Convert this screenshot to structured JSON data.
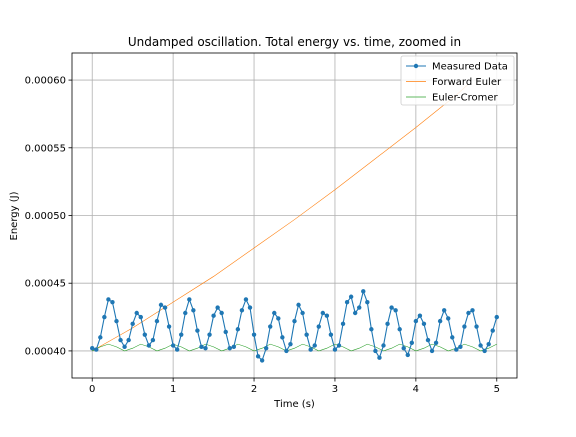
{
  "chart_data": {
    "type": "line",
    "title": "Undamped oscillation. Total energy vs. time, zoomed in",
    "xlabel": "Time (s)",
    "ylabel": "Energy (J)",
    "xlim": [
      -0.25,
      5.25
    ],
    "ylim": [
      0.00038,
      0.00062
    ],
    "x_ticks": [
      0,
      1,
      2,
      3,
      4,
      5
    ],
    "x_tick_labels": [
      "0",
      "1",
      "2",
      "3",
      "4",
      "5"
    ],
    "y_ticks": [
      0.0004,
      0.00045,
      0.0005,
      0.00055,
      0.0006
    ],
    "y_tick_labels": [
      "0.00040",
      "0.00045",
      "0.00050",
      "0.00055",
      "0.00060"
    ],
    "grid": true,
    "legend_position": "top-right",
    "colors": {
      "measured": "#1f77b4",
      "forward_euler": "#ff7f0e",
      "euler_cromer": "#2ca02c",
      "grid": "#b0b0b0"
    },
    "series": [
      {
        "name": "Measured Data",
        "style": "line-with-markers",
        "x": [
          0.0,
          0.05,
          0.1,
          0.15,
          0.2,
          0.25,
          0.3,
          0.35,
          0.4,
          0.45,
          0.5,
          0.55,
          0.6,
          0.65,
          0.7,
          0.75,
          0.8,
          0.85,
          0.9,
          0.95,
          1.0,
          1.05,
          1.1,
          1.15,
          1.2,
          1.25,
          1.3,
          1.35,
          1.4,
          1.45,
          1.5,
          1.55,
          1.6,
          1.65,
          1.7,
          1.75,
          1.8,
          1.85,
          1.9,
          1.95,
          2.0,
          2.05,
          2.1,
          2.15,
          2.2,
          2.25,
          2.3,
          2.35,
          2.4,
          2.45,
          2.5,
          2.55,
          2.6,
          2.65,
          2.7,
          2.75,
          2.8,
          2.85,
          2.9,
          2.95,
          3.0,
          3.05,
          3.1,
          3.15,
          3.2,
          3.25,
          3.3,
          3.35,
          3.4,
          3.45,
          3.5,
          3.55,
          3.6,
          3.65,
          3.7,
          3.75,
          3.8,
          3.85,
          3.9,
          3.95,
          4.0,
          4.05,
          4.1,
          4.15,
          4.2,
          4.25,
          4.3,
          4.35,
          4.4,
          4.45,
          4.5,
          4.55,
          4.6,
          4.65,
          4.7,
          4.75,
          4.8,
          4.85,
          4.9,
          4.95,
          5.0
        ],
        "y": [
          0.000402,
          0.000401,
          0.00041,
          0.000425,
          0.000438,
          0.000436,
          0.000422,
          0.000408,
          0.000403,
          0.000408,
          0.00042,
          0.000428,
          0.000425,
          0.000412,
          0.000404,
          0.000408,
          0.000422,
          0.000434,
          0.000432,
          0.000418,
          0.000404,
          0.000401,
          0.000412,
          0.000428,
          0.000438,
          0.00043,
          0.000415,
          0.000403,
          0.000402,
          0.000412,
          0.000426,
          0.000432,
          0.000428,
          0.000414,
          0.000402,
          0.000403,
          0.000416,
          0.00043,
          0.000438,
          0.000432,
          0.000412,
          0.000396,
          0.000393,
          0.000402,
          0.000418,
          0.000428,
          0.000424,
          0.00041,
          0.0004,
          0.000405,
          0.000422,
          0.000434,
          0.000428,
          0.000412,
          0.000401,
          0.000404,
          0.000418,
          0.000428,
          0.000426,
          0.000412,
          0.000401,
          0.000404,
          0.00042,
          0.000436,
          0.00044,
          0.000428,
          0.000432,
          0.000444,
          0.000436,
          0.000416,
          0.0004,
          0.000395,
          0.000404,
          0.00042,
          0.000432,
          0.00043,
          0.000416,
          0.000402,
          0.000397,
          0.000406,
          0.000422,
          0.000426,
          0.00042,
          0.000408,
          0.0004,
          0.000406,
          0.000422,
          0.00043,
          0.000424,
          0.00041,
          0.000401,
          0.000403,
          0.000418,
          0.000428,
          0.00043,
          0.000418,
          0.000404,
          0.0004,
          0.000405,
          0.000415,
          0.000425
        ]
      },
      {
        "name": "Forward Euler",
        "style": "line",
        "x": [
          0.0,
          0.5,
          1.0,
          1.5,
          2.0,
          2.5,
          3.0,
          3.5,
          4.0,
          4.5,
          4.65
        ],
        "y": [
          0.0004,
          0.000417,
          0.000436,
          0.000455,
          0.000476,
          0.000497,
          0.000519,
          0.000542,
          0.000565,
          0.000589,
          0.000597
        ]
      },
      {
        "name": "Euler-Cromer",
        "style": "line",
        "x": [
          0.0,
          0.1,
          0.2,
          0.3,
          0.4,
          0.5,
          0.6,
          0.7,
          0.8,
          0.9,
          1.0,
          1.1,
          1.2,
          1.3,
          1.4,
          1.5,
          1.6,
          1.7,
          1.8,
          1.9,
          2.0,
          2.1,
          2.2,
          2.3,
          2.4,
          2.5,
          2.6,
          2.7,
          2.8,
          2.9,
          3.0,
          3.1,
          3.2,
          3.3,
          3.4,
          3.5,
          3.6,
          3.7,
          3.8,
          3.9,
          4.0,
          4.1,
          4.2,
          4.3,
          4.4,
          4.5,
          4.6,
          4.7,
          4.8,
          4.9,
          5.0
        ],
        "y": [
          0.0004,
          0.000403,
          0.000405,
          0.000403,
          0.0004,
          0.000402,
          0.000405,
          0.000403,
          0.0004,
          0.000402,
          0.000405,
          0.000403,
          0.0004,
          0.000402,
          0.000405,
          0.000403,
          0.0004,
          0.000402,
          0.000405,
          0.000403,
          0.0004,
          0.000402,
          0.000405,
          0.000403,
          0.0004,
          0.000402,
          0.000405,
          0.000403,
          0.0004,
          0.000402,
          0.000405,
          0.000403,
          0.0004,
          0.000402,
          0.000405,
          0.000403,
          0.0004,
          0.000402,
          0.000405,
          0.000403,
          0.0004,
          0.000402,
          0.000405,
          0.000403,
          0.0004,
          0.000402,
          0.000405,
          0.000403,
          0.0004,
          0.000402,
          0.000405
        ]
      }
    ]
  }
}
